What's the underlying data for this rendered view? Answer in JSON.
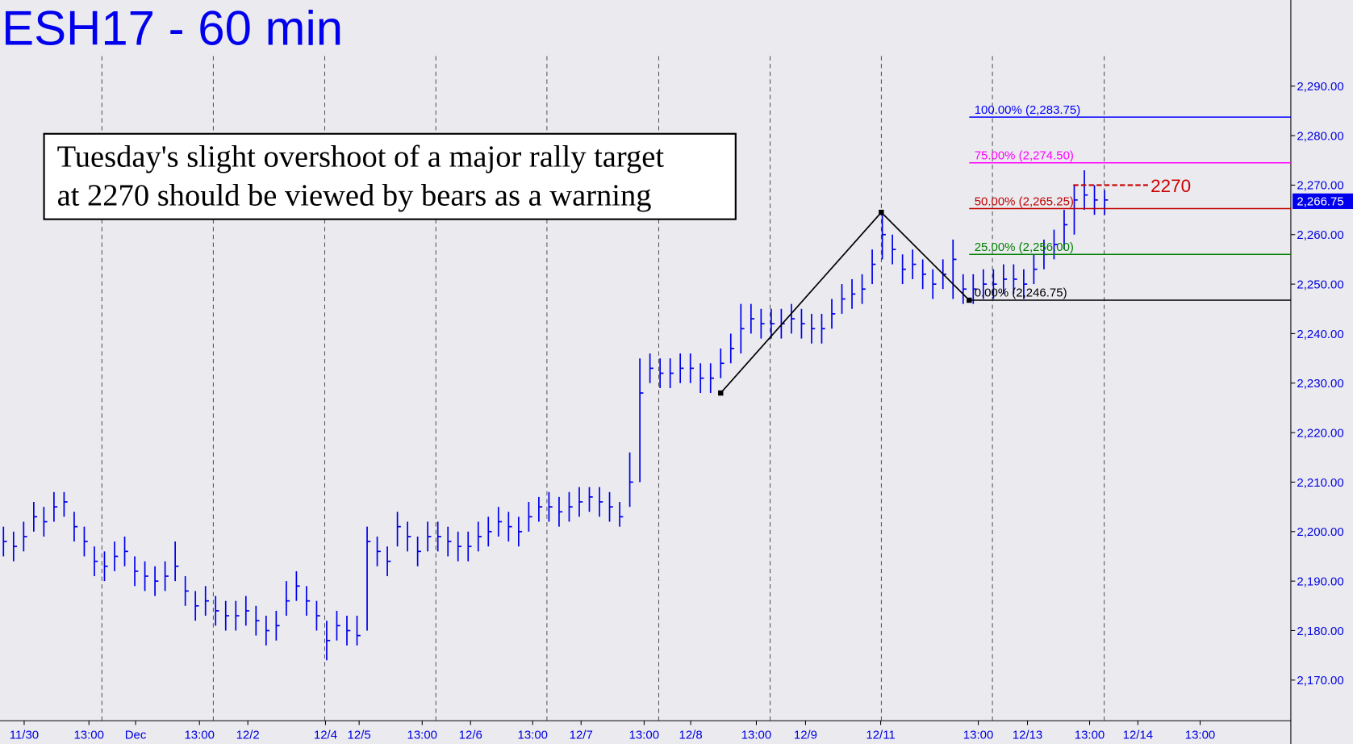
{
  "chart_data": {
    "type": "ohlc",
    "title": "ESH17 - 60 min",
    "note": [
      "Tuesday's slight overshoot of a major rally target",
      "at 2270 should be viewed by bears as a warning"
    ],
    "color": "#0000ee",
    "xlim": [
      -0.342,
      127.44
    ],
    "ylim": [
      2161.8,
      2307.4
    ],
    "yticks": [
      {
        "value": 2170,
        "label": "2,170.00"
      },
      {
        "value": 2180,
        "label": "2,180.00"
      },
      {
        "value": 2190,
        "label": "2,190.00"
      },
      {
        "value": 2200,
        "label": "2,200.00"
      },
      {
        "value": 2210,
        "label": "2,210.00"
      },
      {
        "value": 2220,
        "label": "2,220.00"
      },
      {
        "value": 2230,
        "label": "2,230.00"
      },
      {
        "value": 2240,
        "label": "2,240.00"
      },
      {
        "value": 2250,
        "label": "2,250.00"
      },
      {
        "value": 2260,
        "label": "2,260.00"
      },
      {
        "value": 2270,
        "label": "2,270.00"
      },
      {
        "value": 2280,
        "label": "2,280.00"
      },
      {
        "value": 2290,
        "label": "2,290.00"
      }
    ],
    "xticks": [
      {
        "value": 2.05,
        "label": "11/30"
      },
      {
        "value": 8.46,
        "label": "13:00"
      },
      {
        "value": 13.08,
        "label": "Dec"
      },
      {
        "value": 19.4,
        "label": "13:00"
      },
      {
        "value": 24.19,
        "label": "12/2"
      },
      {
        "value": 31.88,
        "label": "12/4"
      },
      {
        "value": 35.21,
        "label": "12/5"
      },
      {
        "value": 41.45,
        "label": "13:00"
      },
      {
        "value": 46.24,
        "label": "12/6"
      },
      {
        "value": 52.39,
        "label": "13:00"
      },
      {
        "value": 57.18,
        "label": "12/7"
      },
      {
        "value": 63.42,
        "label": "13:00"
      },
      {
        "value": 68.03,
        "label": "12/8"
      },
      {
        "value": 74.53,
        "label": "13:00"
      },
      {
        "value": 79.4,
        "label": "12/9"
      },
      {
        "value": 86.84,
        "label": "12/11"
      },
      {
        "value": 96.5,
        "label": "13:00"
      },
      {
        "value": 101.37,
        "label": "12/13"
      },
      {
        "value": 107.52,
        "label": "13:00"
      },
      {
        "value": 112.3,
        "label": "12/14"
      },
      {
        "value": 118.46,
        "label": "13:00"
      }
    ],
    "vgrid": [
      9.74,
      20.77,
      31.8,
      42.8,
      53.8,
      64.87,
      75.9,
      86.9,
      97.9,
      108.97
    ],
    "high": [
      2201,
      2200,
      2202,
      2206,
      2205,
      2208,
      2208,
      2204,
      2201,
      2197,
      2196,
      2198,
      2199,
      2195,
      2194,
      2193,
      2194,
      2198,
      2191,
      2188,
      2189,
      2187,
      2186,
      2186,
      2187,
      2185,
      2183,
      2184,
      2190,
      2192,
      2189,
      2186,
      2182,
      2184,
      2183,
      2183,
      2201,
      2199,
      2197,
      2204,
      2202,
      2199,
      2202,
      2202,
      2201,
      2200,
      2200,
      2202,
      2203,
      2205,
      2204,
      2203,
      2206,
      2207,
      2208,
      2207,
      2208,
      2209,
      2209,
      2209,
      2208,
      2206,
      2216,
      2235,
      2236,
      2235,
      2235,
      2236,
      2236,
      2234,
      2234,
      2237,
      2240,
      2246,
      2246,
      2245,
      2245,
      2245,
      2246,
      2245,
      2244,
      2244,
      2247,
      2250,
      2251,
      2252,
      2257,
      2265,
      2260,
      2256,
      2257,
      2255,
      2253,
      2255,
      2259,
      2252,
      2252,
      2253,
      2253,
      2254,
      2254,
      2253,
      2256,
      2259,
      2261,
      2265,
      2270,
      2273,
      2270,
      2269
    ],
    "low": [
      2195,
      2194,
      2196,
      2200,
      2199,
      2202,
      2203,
      2198,
      2195,
      2191,
      2190,
      2192,
      2193,
      2189,
      2188,
      2187,
      2188,
      2190,
      2185,
      2182,
      2183,
      2181,
      2180,
      2180,
      2181,
      2179,
      2177,
      2178,
      2183,
      2186,
      2183,
      2180,
      2174,
      2178,
      2177,
      2177,
      2180,
      2193,
      2191,
      2197,
      2196,
      2193,
      2196,
      2196,
      2195,
      2194,
      2194,
      2196,
      2197,
      2199,
      2198,
      2197,
      2200,
      2202,
      2202,
      2201,
      2202,
      2203,
      2204,
      2203,
      2202,
      2201,
      2205,
      2210,
      2230,
      2229,
      2229,
      2230,
      2230,
      2228,
      2228,
      2231,
      2234,
      2236,
      2240,
      2239,
      2239,
      2239,
      2240,
      2239,
      2238,
      2238,
      2241,
      2244,
      2245,
      2246,
      2250,
      2255,
      2254,
      2250,
      2251,
      2249,
      2247,
      2249,
      2247,
      2246,
      2246,
      2247,
      2247,
      2248,
      2248,
      2247,
      2250,
      2253,
      2255,
      2257,
      2260,
      2265,
      2264,
      2264
    ],
    "close": [
      2198,
      2197,
      2199,
      2203,
      2202,
      2205,
      2206,
      2201,
      2198,
      2194,
      2193,
      2195,
      2196,
      2192,
      2191,
      2190,
      2191,
      2193,
      2188,
      2185,
      2186,
      2184,
      2183,
      2183,
      2184,
      2182,
      2180,
      2181,
      2186,
      2189,
      2186,
      2183,
      2178,
      2181,
      2180,
      2179,
      2198,
      2196,
      2194,
      2201,
      2199,
      2196,
      2199,
      2199,
      2198,
      2197,
      2197,
      2199,
      2200,
      2202,
      2201,
      2200,
      2203,
      2205,
      2205,
      2204,
      2205,
      2206,
      2207,
      2206,
      2205,
      2203,
      2210,
      2228,
      2233,
      2232,
      2232,
      2233,
      2233,
      2231,
      2231,
      2234,
      2237,
      2241,
      2243,
      2242,
      2242,
      2242,
      2243,
      2242,
      2241,
      2241,
      2244,
      2247,
      2248,
      2249,
      2254,
      2260,
      2257,
      2253,
      2254,
      2252,
      2250,
      2252,
      2255,
      2249,
      2249,
      2250,
      2250,
      2251,
      2251,
      2250,
      2253,
      2256,
      2258,
      2262,
      2267,
      2268,
      2267,
      2267
    ],
    "pivots": {
      "x": [
        71,
        86.9,
        95.6
      ],
      "y": [
        2228,
        2264.5,
        2246.75
      ]
    },
    "levels": [
      {
        "label": "100.00% (2,283.75)",
        "value": 2283.75,
        "color": "#0000ff"
      },
      {
        "label": "75.00% (2,274.50)",
        "value": 2274.5,
        "color": "#ff00ff"
      },
      {
        "label": "50.00% (2,265.25)",
        "value": 2265.25,
        "color": "#c00000"
      },
      {
        "label": "25.00% (2,256.00)",
        "value": 2256,
        "color": "#008000"
      },
      {
        "label": "0.00% (2,246.75)",
        "value": 2246.75,
        "color": "#000000"
      }
    ],
    "target": {
      "text": "2270",
      "value": 2270,
      "x": [
        105.9,
        113.3
      ],
      "color": "#cc0000"
    },
    "last_price": {
      "value": 2266.75,
      "label": "2,266.75"
    }
  }
}
